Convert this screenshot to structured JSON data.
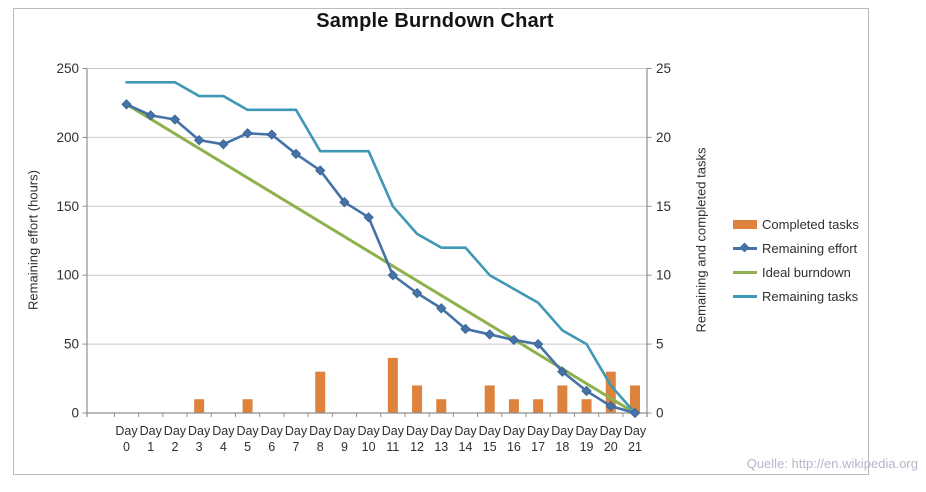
{
  "title": "Sample Burndown Chart",
  "source_note": "Quelle: http://en.wikipedia.org",
  "legend": {
    "position": "right",
    "items": [
      "Completed tasks",
      "Remaining effort",
      "Ideal burndown",
      "Remaining tasks"
    ]
  },
  "chart_data": {
    "type": "combo",
    "title": "Sample Burndown Chart",
    "grid": "horizontal",
    "categories": [
      "Day 0",
      "Day 1",
      "Day 2",
      "Day 3",
      "Day 4",
      "Day 5",
      "Day 6",
      "Day 7",
      "Day 8",
      "Day 9",
      "Day 10",
      "Day 11",
      "Day 12",
      "Day 13",
      "Day 14",
      "Day 15",
      "Day 16",
      "Day 17",
      "Day 18",
      "Day 19",
      "Day 20",
      "Day 21"
    ],
    "left_axis": {
      "title": "Remaining effort (hours)",
      "ticks": [
        0,
        50,
        100,
        150,
        200,
        250
      ],
      "min": 0,
      "max": 250
    },
    "right_axis": {
      "title": "Remaining and completed tasks",
      "ticks": [
        0,
        5,
        10,
        15,
        20,
        25
      ],
      "min": 0,
      "max": 25
    },
    "series": [
      {
        "name": "Completed tasks",
        "type": "bar",
        "axis": "right",
        "color": "#de833e",
        "values": [
          0,
          0,
          0,
          1,
          0,
          1,
          0,
          0,
          3,
          0,
          0,
          4,
          2,
          1,
          0,
          2,
          1,
          1,
          2,
          1,
          3,
          2
        ]
      },
      {
        "name": "Remaining effort",
        "type": "line",
        "marker": "diamond",
        "axis": "left",
        "color": "#4573a7",
        "values": [
          224,
          216,
          213,
          198,
          195,
          203,
          202,
          188,
          176,
          153,
          142,
          100,
          87,
          76,
          61,
          57,
          53,
          50,
          30,
          16,
          5,
          0
        ]
      },
      {
        "name": "Ideal burndown",
        "type": "line",
        "axis": "left",
        "color": "#8eb14d",
        "points": [
          {
            "day": 0,
            "value": 224
          },
          {
            "day": 21,
            "value": 0
          }
        ]
      },
      {
        "name": "Remaining tasks",
        "type": "line",
        "axis": "right",
        "color": "#3f98b5",
        "values": [
          24,
          24,
          24,
          23,
          23,
          22,
          22,
          22,
          19,
          19,
          19,
          15,
          13,
          12,
          12,
          10,
          9,
          8,
          6,
          5,
          2,
          0
        ]
      }
    ],
    "style_colors": {
      "gridline": "#c9c9c9",
      "axis_line": "#8f8f8f",
      "label_text": "#2f2f2f"
    }
  }
}
